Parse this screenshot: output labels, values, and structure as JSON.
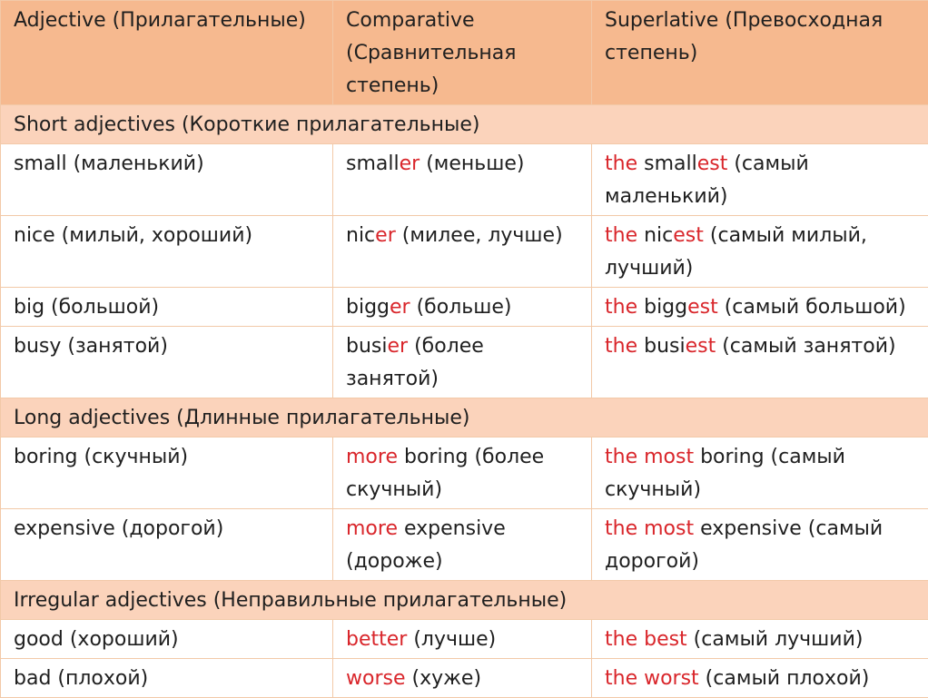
{
  "headers": [
    "Adjective (Прилагательные)",
    "Comparative (Сравнительная степень)",
    "Superlative (Превосходная степень)"
  ],
  "sections": [
    {
      "title": "Short adjectives (Короткие прилагательные)",
      "rows": [
        {
          "adjective": "small (маленький)",
          "comparative": [
            {
              "t": "small"
            },
            {
              "t": "er",
              "hl": true
            },
            {
              "t": " (меньше)"
            }
          ],
          "superlative": [
            {
              "t": "the",
              "hl": true
            },
            {
              "t": " small"
            },
            {
              "t": "est",
              "hl": true
            },
            {
              "t": " (самый маленький)"
            }
          ]
        },
        {
          "adjective": "nice (милый, хороший)",
          "comparative": [
            {
              "t": "nic"
            },
            {
              "t": "er",
              "hl": true
            },
            {
              "t": " (милее, лучше)"
            }
          ],
          "superlative": [
            {
              "t": "the",
              "hl": true
            },
            {
              "t": " nic"
            },
            {
              "t": "est",
              "hl": true
            },
            {
              "t": " (самый милый, лучший)"
            }
          ]
        },
        {
          "adjective": "big (большой)",
          "comparative": [
            {
              "t": "bigg"
            },
            {
              "t": "er",
              "hl": true
            },
            {
              "t": " (больше)"
            }
          ],
          "superlative": [
            {
              "t": "the",
              "hl": true
            },
            {
              "t": " bigg"
            },
            {
              "t": "est",
              "hl": true
            },
            {
              "t": " (самый большой)"
            }
          ]
        },
        {
          "adjective": "busy (занятой)",
          "comparative": [
            {
              "t": "busi"
            },
            {
              "t": "er",
              "hl": true
            },
            {
              "t": " (более занятой)"
            }
          ],
          "superlative": [
            {
              "t": "the",
              "hl": true
            },
            {
              "t": " busi"
            },
            {
              "t": "est",
              "hl": true
            },
            {
              "t": " (самый занятой)"
            }
          ]
        }
      ]
    },
    {
      "title": "Long adjectives (Длинные прилагательные)",
      "rows": [
        {
          "adjective": "boring (скучный)",
          "comparative": [
            {
              "t": "more",
              "hl": true
            },
            {
              "t": " boring (более скучный)"
            }
          ],
          "superlative": [
            {
              "t": "the most",
              "hl": true
            },
            {
              "t": " boring (самый скучный)"
            }
          ]
        },
        {
          "adjective": "expensive (дорогой)",
          "comparative": [
            {
              "t": "more",
              "hl": true
            },
            {
              "t": " expensive (дороже)"
            }
          ],
          "superlative": [
            {
              "t": "the most",
              "hl": true
            },
            {
              "t": " expensive (самый дорогой)"
            }
          ]
        }
      ]
    },
    {
      "title": "Irregular adjectives (Неправильные прилагательные)",
      "rows": [
        {
          "adjective": "good (хороший)",
          "comparative": [
            {
              "t": "better",
              "hl": true
            },
            {
              "t": " (лучше)"
            }
          ],
          "superlative": [
            {
              "t": "the best",
              "hl": true
            },
            {
              "t": " (самый лучший)"
            }
          ]
        },
        {
          "adjective": "bad (плохой)",
          "comparative": [
            {
              "t": "worse",
              "hl": true
            },
            {
              "t": " (хуже)"
            }
          ],
          "superlative": [
            {
              "t": "the worst",
              "hl": true
            },
            {
              "t": " (самый плохой)"
            }
          ]
        }
      ]
    }
  ],
  "colors": {
    "header_bg": "#f6b98f",
    "section_bg": "#fbd3bb",
    "highlight": "#d9262b",
    "border": "#f2c9a8"
  }
}
